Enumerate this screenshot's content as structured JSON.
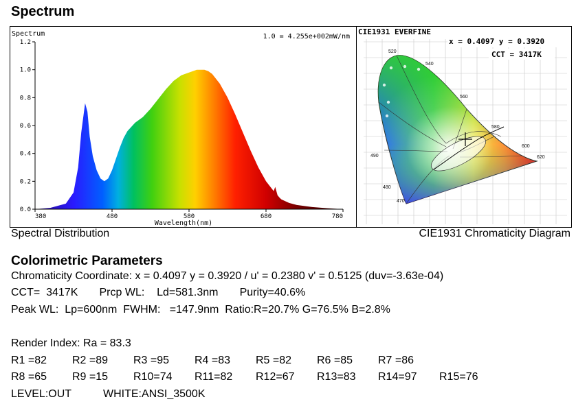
{
  "header": {
    "title": "Spectrum"
  },
  "chart_data": [
    {
      "type": "area",
      "title": "Spectrum",
      "annotation": "1.0 = 4.255e+002mW/nm",
      "xlabel": "Wavelength(nm)",
      "ylabel": "",
      "xlim": [
        380,
        780
      ],
      "ylim": [
        0,
        1.2
      ],
      "x_ticks": [
        380,
        480,
        580,
        680,
        780
      ],
      "y_ticks": [
        "0.0",
        "0.2",
        "0.4",
        "0.6",
        "0.8",
        "1.0",
        "1.2"
      ],
      "grid": false,
      "colormap": "visible-spectrum",
      "x": [
        380,
        400,
        420,
        430,
        436,
        440,
        445,
        448,
        451,
        455,
        460,
        465,
        470,
        475,
        480,
        485,
        490,
        495,
        500,
        510,
        520,
        530,
        540,
        550,
        560,
        570,
        580,
        590,
        595,
        600,
        605,
        610,
        620,
        630,
        640,
        650,
        660,
        670,
        680,
        690,
        692,
        695,
        698,
        700,
        710,
        720,
        740,
        760,
        780
      ],
      "values": [
        0.0,
        0.01,
        0.04,
        0.12,
        0.3,
        0.55,
        0.76,
        0.7,
        0.52,
        0.38,
        0.28,
        0.22,
        0.2,
        0.22,
        0.28,
        0.36,
        0.44,
        0.51,
        0.56,
        0.62,
        0.66,
        0.72,
        0.79,
        0.86,
        0.92,
        0.96,
        0.98,
        1.0,
        1.0,
        1.0,
        0.99,
        0.97,
        0.9,
        0.8,
        0.68,
        0.55,
        0.42,
        0.3,
        0.2,
        0.13,
        0.16,
        0.1,
        0.08,
        0.07,
        0.045,
        0.03,
        0.015,
        0.007,
        0.0
      ]
    },
    {
      "type": "scatter",
      "title": "CIE1931   EVERFINE",
      "readout": "x = 0.4097  y = 0.3920",
      "cct_text": "CCT = 3417K",
      "x": [
        0.4097
      ],
      "y": [
        0.392
      ],
      "locus_labels": [
        "520",
        "540",
        "560",
        "580",
        "600",
        "620",
        "490",
        "480",
        "470"
      ]
    }
  ],
  "captions": {
    "spectrum": "Spectral Distribution",
    "cie": "CIE1931 Chromaticity Diagram"
  },
  "params": {
    "title": "Colorimetric Parameters",
    "line1": "Chromaticity Coordinate: x = 0.4097 y = 0.3920 / u' = 0.2380 v' = 0.5125 (duv=-3.63e-04)",
    "line2": "CCT=  3417K       Prcp WL:    Ld=581.3nm       Purity=40.6%",
    "line3": "Peak WL:  Lp=600nm  FWHM:   =147.9nm  Ratio:R=20.7% G=76.5% B=2.8%",
    "render": "Render Index: Ra = 83.3",
    "ri_row1": [
      "R1 =82",
      "R2 =89",
      "R3 =95",
      "R4 =83",
      "R5 =82",
      "R6 =85",
      "R7 =86"
    ],
    "ri_row2": [
      "R8 =65",
      "R9 =15",
      "R10=74",
      "R11=82",
      "R12=67",
      "R13=83",
      "R14=97",
      "R15=76"
    ],
    "level": "LEVEL:OUT",
    "white": "WHITE:ANSI_3500K"
  }
}
